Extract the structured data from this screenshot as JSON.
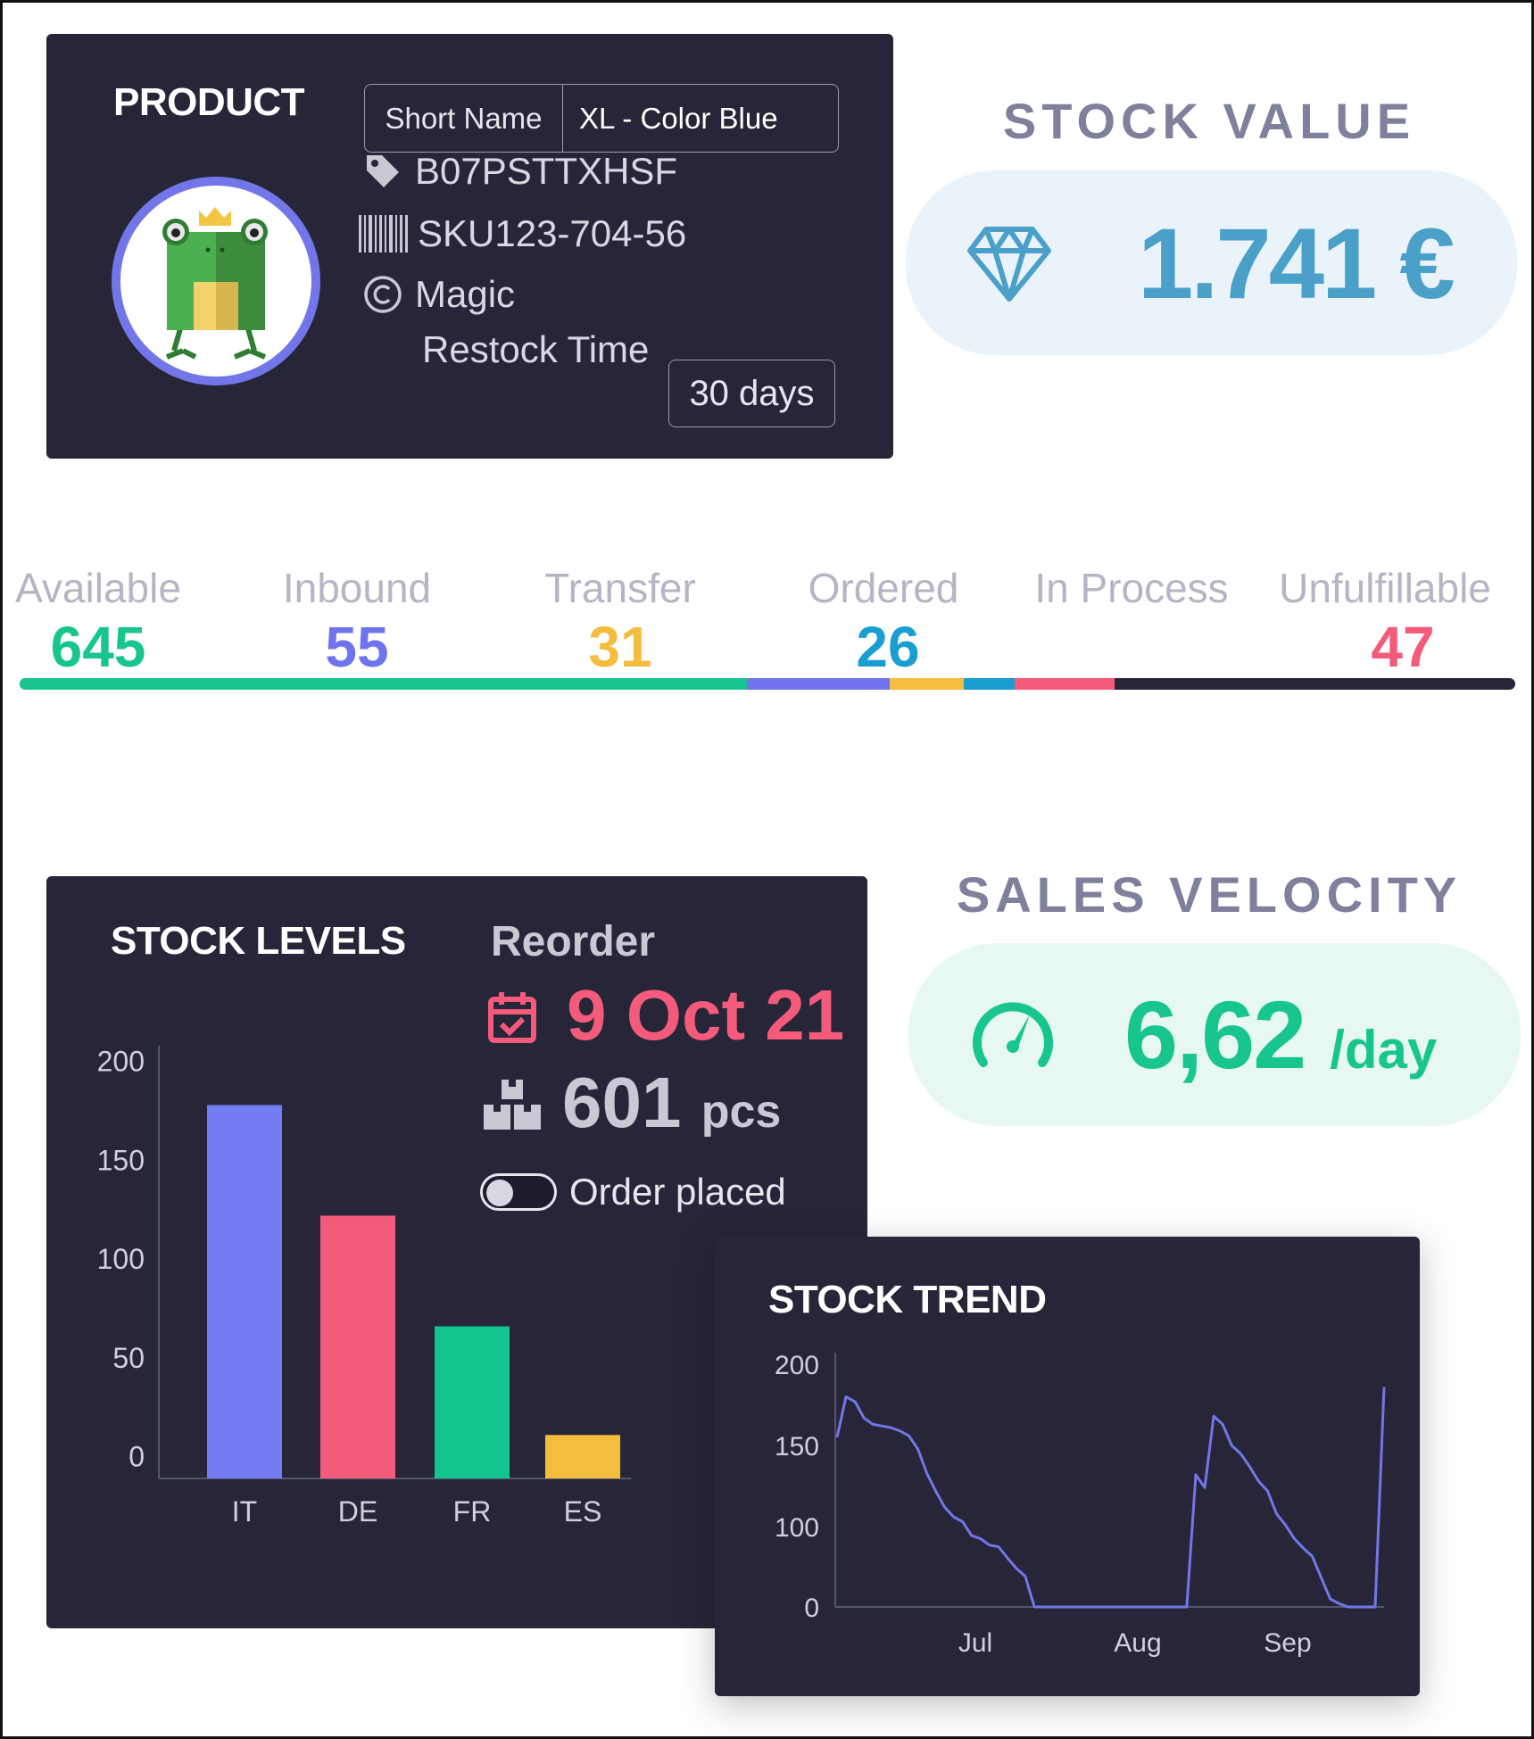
{
  "product": {
    "title": "PRODUCT",
    "short_name_label": "Short Name",
    "short_name_value": "XL - Color Blue",
    "asin": "B07PSTTXHSF",
    "sku": "SKU123-704-56",
    "brand": "Magic",
    "restock_label": "Restock Time",
    "restock_value": "30 days",
    "icons": [
      "tag-icon",
      "barcode-icon",
      "copyright-icon",
      "frog-avatar"
    ]
  },
  "stock_value": {
    "title": "STOCK VALUE",
    "value": "1.741 €",
    "icon": "diamond-icon",
    "color": "#4aa0c8",
    "background": "#eaf3fa"
  },
  "inventory": {
    "stats": [
      {
        "label": "Available",
        "value": "645",
        "color": "#18c58f"
      },
      {
        "label": "Inbound",
        "value": "55",
        "color": "#6f74ee"
      },
      {
        "label": "Transfer",
        "value": "31",
        "color": "#f4bd3e"
      },
      {
        "label": "Ordered",
        "value": "26",
        "color": "#1a9ed0"
      },
      {
        "label": "In Process",
        "value": "",
        "color": "#f45b7b"
      },
      {
        "label": "Unfulfillable",
        "value": "47",
        "color": "#f45b7b"
      }
    ]
  },
  "stock_levels": {
    "title": "STOCK LEVELS",
    "reorder_label": "Reorder",
    "reorder_date": "9 Oct 21",
    "reorder_qty": "601",
    "reorder_unit": "pcs",
    "order_placed_label": "Order placed",
    "order_placed": false
  },
  "sales_velocity": {
    "title": "SALES VELOCITY",
    "value": "6,62",
    "unit": "/day",
    "icon": "speedometer-icon",
    "color": "#18c58f",
    "background": "#e6f8f1"
  },
  "stock_trend": {
    "title": "STOCK TREND"
  },
  "chart_data": [
    {
      "type": "bar",
      "title": "STOCK LEVELS",
      "categories": [
        "IT",
        "DE",
        "FR",
        "ES"
      ],
      "values": [
        178,
        122,
        66,
        11
      ],
      "colors": [
        "#737cf3",
        "#f45b7b",
        "#12c58f",
        "#f4bd3e"
      ],
      "yticks": [
        200,
        150,
        100,
        50,
        0
      ],
      "ylim": [
        -11,
        208
      ]
    },
    {
      "type": "line",
      "title": "STOCK TREND",
      "xticks": [
        "Jul",
        "Aug",
        "Sep"
      ],
      "yticks": [
        200,
        150,
        100,
        0
      ],
      "series": [
        {
          "color": "#7276e8",
          "x": [
            0,
            1,
            2,
            3,
            4,
            5,
            6,
            7,
            8,
            9,
            10,
            11,
            12,
            13,
            14,
            15,
            16,
            17,
            18,
            19,
            20,
            21,
            22,
            23,
            24,
            25,
            26,
            27,
            28,
            29,
            30,
            31,
            32,
            33,
            34,
            35,
            36,
            37,
            38,
            39,
            40,
            41,
            42,
            43,
            44,
            45,
            46,
            47,
            48,
            49,
            50,
            51,
            52,
            53,
            54,
            55,
            56,
            57,
            58,
            59,
            60,
            61
          ],
          "y": [
            155,
            180,
            177,
            167,
            163,
            162,
            161,
            159,
            156,
            148,
            133,
            122,
            112,
            106,
            103,
            89,
            85,
            77,
            75,
            61,
            48,
            38,
            0,
            0,
            0,
            0,
            0,
            0,
            0,
            0,
            0,
            0,
            0,
            0,
            0,
            0,
            0,
            0,
            0,
            0,
            132,
            124,
            168,
            163,
            150,
            145,
            137,
            128,
            122,
            108,
            101,
            85,
            73,
            63,
            36,
            10,
            4,
            0,
            0,
            0,
            0,
            186
          ]
        }
      ]
    }
  ]
}
